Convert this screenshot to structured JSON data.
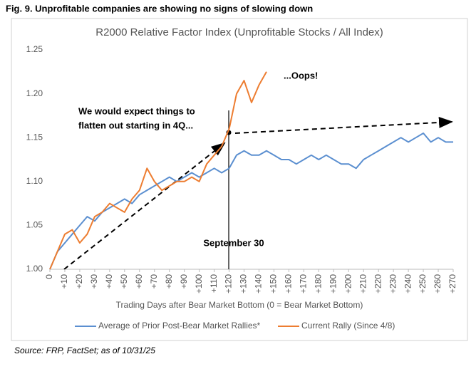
{
  "figure_title": "Fig. 9. Unprofitable companies are showing no signs of slowing down",
  "source": "Source: FRP, FactSet; as of 10/31/25",
  "chart_data": {
    "type": "line",
    "title": "R2000 Relative Factor Index (Unprofitable Stocks /  All Index)",
    "x_label": "Trading Days after Bear Market Bottom (0 = Bear Market Bottom)",
    "annotations": [
      "...Oops!",
      "We would expect things to",
      "flatten out starting in 4Q...",
      "September 30"
    ],
    "x": [
      0,
      5,
      10,
      15,
      20,
      25,
      30,
      35,
      40,
      45,
      50,
      55,
      60,
      65,
      70,
      75,
      80,
      85,
      90,
      95,
      100,
      105,
      110,
      115,
      120,
      125,
      130,
      135,
      140,
      145,
      150,
      155,
      160,
      165,
      170,
      175,
      180,
      185,
      190,
      195,
      200,
      205,
      210,
      215,
      220,
      225,
      230,
      235,
      240,
      245,
      250,
      255,
      260,
      265,
      270
    ],
    "series": [
      {
        "name": "Average of Prior Post-Bear Market Rallies*",
        "color": "#5b8fd0",
        "values": [
          1.0,
          1.02,
          1.03,
          1.04,
          1.05,
          1.06,
          1.055,
          1.065,
          1.07,
          1.075,
          1.08,
          1.075,
          1.085,
          1.09,
          1.095,
          1.1,
          1.105,
          1.1,
          1.105,
          1.11,
          1.105,
          1.11,
          1.115,
          1.11,
          1.115,
          1.13,
          1.135,
          1.13,
          1.13,
          1.135,
          1.13,
          1.125,
          1.125,
          1.12,
          1.125,
          1.13,
          1.125,
          1.13,
          1.125,
          1.12,
          1.12,
          1.115,
          1.125,
          1.13,
          1.135,
          1.14,
          1.145,
          1.15,
          1.145,
          1.15,
          1.155,
          1.145,
          1.15,
          1.145,
          1.145
        ]
      },
      {
        "name": "Current Rally (Since 4/8)",
        "color": "#ed7d31",
        "values": [
          1.0,
          1.02,
          1.04,
          1.045,
          1.03,
          1.04,
          1.06,
          1.065,
          1.075,
          1.07,
          1.065,
          1.08,
          1.09,
          1.115,
          1.1,
          1.09,
          1.095,
          1.1,
          1.1,
          1.105,
          1.1,
          1.12,
          1.13,
          1.14,
          1.16,
          1.2,
          1.215,
          1.19,
          1.21,
          1.225,
          null,
          null,
          null,
          null,
          null,
          null,
          null,
          null,
          null,
          null,
          null,
          null,
          null,
          null,
          null,
          null,
          null,
          null,
          null,
          null,
          null,
          null,
          null,
          null,
          null
        ]
      }
    ],
    "xlim": [
      0,
      270
    ],
    "xticks": [
      0,
      {
        "value": 10,
        "label": "+10"
      },
      {
        "value": 20,
        "label": "+20"
      },
      {
        "value": 30,
        "label": "+30"
      },
      {
        "value": 40,
        "label": "+40"
      },
      {
        "value": 50,
        "label": "+50"
      },
      {
        "value": 60,
        "label": "+60"
      },
      {
        "value": 70,
        "label": "+70"
      },
      {
        "value": 80,
        "label": "+80"
      },
      {
        "value": 90,
        "label": "+90"
      },
      {
        "value": 100,
        "label": "+100"
      },
      {
        "value": 110,
        "label": "+110"
      },
      {
        "value": 120,
        "label": "+120"
      },
      {
        "value": 130,
        "label": "+130"
      },
      {
        "value": 140,
        "label": "+140"
      },
      {
        "value": 150,
        "label": "+150"
      },
      {
        "value": 160,
        "label": "+160"
      },
      {
        "value": 170,
        "label": "+170"
      },
      {
        "value": 180,
        "label": "+180"
      },
      {
        "value": 190,
        "label": "+190"
      },
      {
        "value": 200,
        "label": "+200"
      },
      {
        "value": 210,
        "label": "+210"
      },
      {
        "value": 220,
        "label": "+220"
      },
      {
        "value": 230,
        "label": "+230"
      },
      {
        "value": 240,
        "label": "+240"
      },
      {
        "value": 250,
        "label": "+250"
      },
      {
        "value": 260,
        "label": "+260"
      },
      {
        "value": 270,
        "label": "+270"
      }
    ],
    "ylim": [
      1.0,
      1.25
    ],
    "yticks": [
      {
        "value": 1.0,
        "label": "1.00"
      },
      {
        "value": 1.05,
        "label": "1.05"
      },
      {
        "value": 1.1,
        "label": "1.10"
      },
      {
        "value": 1.15,
        "label": "1.15"
      },
      {
        "value": 1.2,
        "label": "1.20"
      },
      {
        "value": 1.25,
        "label": "1.25"
      }
    ],
    "grid": false
  }
}
